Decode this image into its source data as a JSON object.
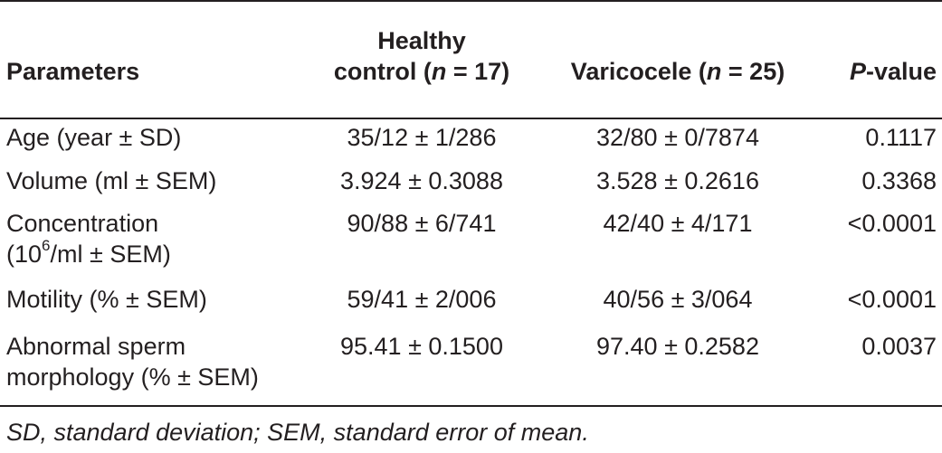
{
  "table": {
    "headers": {
      "parameters": "Parameters",
      "healthy_line1": "Healthy",
      "healthy_line2_pre": "control (",
      "healthy_n": "n",
      "healthy_line2_post": " = 17)",
      "varicocele_pre": "Varicocele (",
      "varicocele_n": "n",
      "varicocele_post": " = 25)",
      "pvalue_p": "P",
      "pvalue_rest": "-value"
    },
    "rows": [
      {
        "param_line1": "Age (year ± SD)",
        "healthy": "35/12 ± 1/286",
        "varicocele": "32/80 ± 0/7874",
        "pvalue": "0.1117"
      },
      {
        "param_line1": "Volume (ml ± SEM)",
        "healthy": "3.924 ± 0.3088",
        "varicocele": "3.528 ± 0.2616",
        "pvalue": "0.3368"
      },
      {
        "param_line1": "Concentration",
        "param_line2_pre": "(10",
        "param_line2_sup": "6",
        "param_line2_post": "/ml ± SEM)",
        "healthy": "90/88 ± 6/741",
        "varicocele": "42/40 ± 4/171",
        "pvalue": "<0.0001"
      },
      {
        "param_line1": "Motility (% ± SEM)",
        "healthy": "59/41 ± 2/006",
        "varicocele": "40/56 ± 3/064",
        "pvalue": "<0.0001"
      },
      {
        "param_line1": "Abnormal sperm",
        "param_line2": "morphology (% ± SEM)",
        "healthy": "95.41 ± 0.1500",
        "varicocele": "97.40 ± 0.2582",
        "pvalue": "0.0037"
      }
    ],
    "footnote": "SD, standard deviation; SEM, standard error of mean."
  }
}
